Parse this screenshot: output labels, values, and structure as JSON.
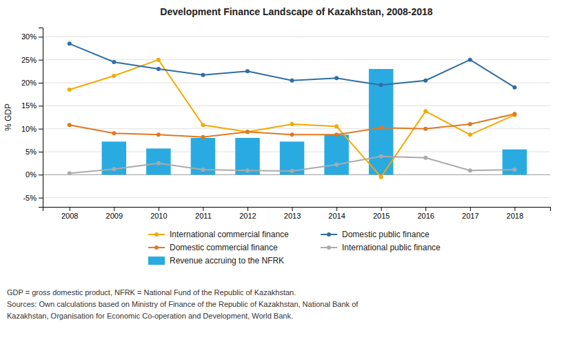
{
  "chart_data": {
    "type": "bar",
    "title": "Development Finance Landscape of Kazakhstan, 2008-2018",
    "y_label": "% GDP",
    "x": [
      2008,
      2009,
      2010,
      2011,
      2012,
      2013,
      2014,
      2015,
      2016,
      2017,
      2018
    ],
    "xlim": [
      2007.4,
      2018.8
    ],
    "xticks": [
      2008,
      2009,
      2010,
      2011,
      2012,
      2013,
      2014,
      2015,
      2016,
      2017,
      2018
    ],
    "ylim": [
      -7,
      32
    ],
    "yticks": [
      {
        "value": -5,
        "label": "-5%"
      },
      {
        "value": 0,
        "label": "0%"
      },
      {
        "value": 5,
        "label": "5%"
      },
      {
        "value": 10,
        "label": "10%"
      },
      {
        "value": 15,
        "label": "15%"
      },
      {
        "value": 20,
        "label": "20%"
      },
      {
        "value": 25,
        "label": "25%"
      },
      {
        "value": 30,
        "label": "30%"
      }
    ],
    "grid": true,
    "legend": "bottom",
    "series": [
      {
        "name": "International commercial finance",
        "type": "line",
        "marker": "circle",
        "color": "#F5A800",
        "values": [
          18.5,
          21.5,
          25.0,
          10.8,
          9.3,
          11.0,
          10.5,
          -0.5,
          13.8,
          8.7,
          13.0
        ]
      },
      {
        "name": "Domestic public finance",
        "type": "line",
        "marker": "circle",
        "color": "#2E6DA4",
        "values": [
          28.5,
          24.5,
          23.0,
          21.7,
          22.5,
          20.5,
          21.0,
          19.5,
          20.5,
          25.0,
          19.0
        ]
      },
      {
        "name": "Domestic commercial finance",
        "type": "line",
        "marker": "circle",
        "color": "#E07820",
        "values": [
          10.8,
          9.0,
          8.7,
          8.2,
          9.3,
          8.7,
          8.7,
          10.2,
          10.0,
          11.0,
          13.2
        ]
      },
      {
        "name": "International public finance",
        "type": "line",
        "marker": "circle",
        "color": "#AAAAAA",
        "values": [
          0.3,
          1.2,
          2.5,
          1.1,
          0.9,
          0.8,
          2.2,
          4.0,
          3.7,
          0.9,
          1.1
        ]
      },
      {
        "name": "Revenue accruing to the NFRK",
        "type": "bar",
        "color": "#29ABE2",
        "values": [
          0,
          7.2,
          5.7,
          8.0,
          8.0,
          7.2,
          8.7,
          23.0,
          0,
          0,
          5.5
        ]
      }
    ],
    "annotations": [
      "GDP = gross domestic product, NFRK = National Fund of the Republic of Kazakhstan.",
      "Sources: Own calculations based on Ministry of Finance of the Republic of Kazakhstan, National Bank of",
      "Kazakhstan, Organisation for Economic Co-operation and Development, World Bank."
    ]
  }
}
